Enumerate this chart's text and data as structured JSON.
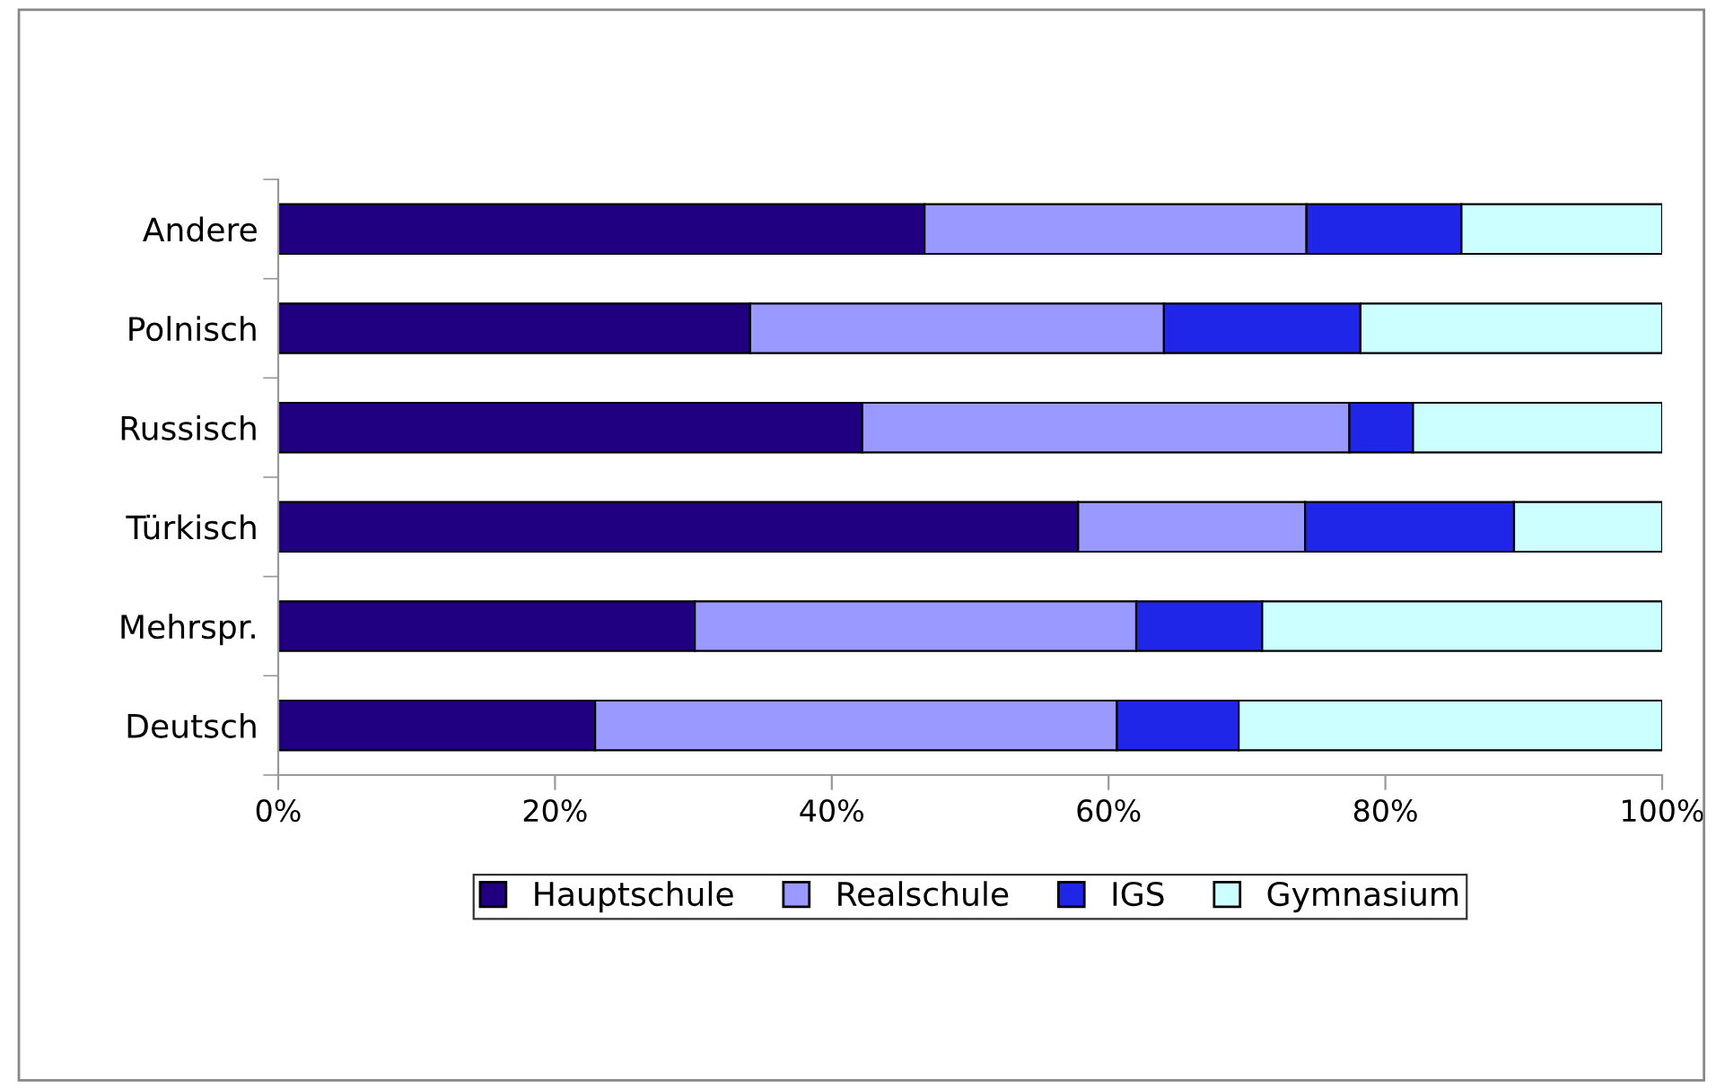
{
  "chart_data": {
    "type": "bar",
    "orientation": "horizontal",
    "stacked": true,
    "categories": [
      "Andere",
      "Polnisch",
      "Russisch",
      "Türkisch",
      "Mehrspr.",
      "Deutsch"
    ],
    "series": [
      {
        "name": "Hauptschule",
        "color": "#200080",
        "values": [
          46.7,
          34.1,
          42.2,
          57.8,
          30.1,
          22.9
        ]
      },
      {
        "name": "Realschule",
        "color": "#9999ff",
        "values": [
          27.6,
          29.9,
          35.2,
          16.4,
          31.9,
          37.7
        ]
      },
      {
        "name": "IGS",
        "color": "#2026e8",
        "values": [
          11.2,
          14.2,
          4.6,
          15.1,
          9.1,
          8.8
        ]
      },
      {
        "name": "Gymnasium",
        "color": "#ccffff",
        "values": [
          14.5,
          21.8,
          18.0,
          10.7,
          28.9,
          30.6
        ]
      }
    ],
    "xlim": [
      0,
      100
    ],
    "xticks": [
      {
        "value": 0,
        "label": "0%"
      },
      {
        "value": 20,
        "label": "20%"
      },
      {
        "value": 40,
        "label": "40%"
      },
      {
        "value": 60,
        "label": "60%"
      },
      {
        "value": 80,
        "label": "80%"
      },
      {
        "value": 100,
        "label": "100%"
      }
    ],
    "grid": false,
    "legend": "bottom"
  }
}
